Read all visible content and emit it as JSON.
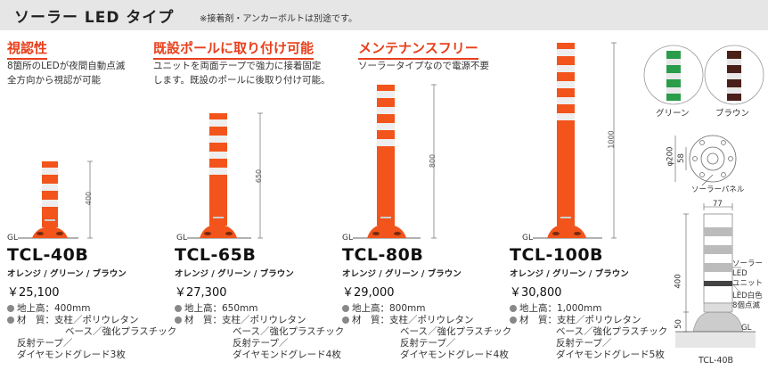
{
  "header": {
    "title": "ソーラー LED タイプ",
    "note": "※接着剤・アンカーボルトは別途です。"
  },
  "features": [
    {
      "title": "視認性",
      "lines": [
        "8箇所のLEDが夜間自動点滅",
        "全方向から視認が可能"
      ]
    },
    {
      "title": "既設ポールに取り付け可能",
      "lines": [
        "ユニットを両面テープで強力に接着固定",
        "します。既設のポールに後取り付け可能。"
      ]
    },
    {
      "title": "メンテナンスフリー",
      "lines": [
        "ソーラータイプなので電源不要"
      ]
    }
  ],
  "products": [
    {
      "name": "TCL-40B",
      "colors": "オレンジ / グリーン / ブラウン",
      "price": "￥25,100",
      "height_label": "400",
      "spec_height": "地上高：400mm",
      "spec_material": "材　質：支柱／ポリウレタン",
      "spec_lines": [
        "ベース／強化プラスチック",
        "反射テープ／",
        "ダイヤモンドグレード3枚"
      ]
    },
    {
      "name": "TCL-65B",
      "colors": "オレンジ / グリーン / ブラウン",
      "price": "￥27,300",
      "height_label": "650",
      "spec_height": "地上高：650mm",
      "spec_material": "材　質：支柱／ポリウレタン",
      "spec_lines": [
        "ベース／強化プラスチック",
        "反射テープ／",
        "ダイヤモンドグレード4枚"
      ]
    },
    {
      "name": "TCL-80B",
      "colors": "オレンジ / グリーン / ブラウン",
      "price": "￥29,000",
      "height_label": "800",
      "spec_height": "地上高：800mm",
      "spec_material": "材　質：支柱／ポリウレタン",
      "spec_lines": [
        "ベース／強化プラスチック",
        "反射テープ／",
        "ダイヤモンドグレード4枚"
      ]
    },
    {
      "name": "TCL-100B",
      "colors": "オレンジ / グリーン / ブラウン",
      "price": "￥30,800",
      "height_label": "1000",
      "spec_height": "地上高：1,000mm",
      "spec_material": "材　質：支柱／ポリウレタン",
      "spec_lines": [
        "ベース／強化プラスチック",
        "反射テープ／",
        "ダイヤモンドグレード5枚"
      ]
    }
  ],
  "gl_label": "GL",
  "swatches": [
    {
      "label": "グリーン",
      "color": "#2a9d4a"
    },
    {
      "label": "ブラウン",
      "color": "#4a1f1a"
    }
  ],
  "diagram": {
    "dia_label": "φ200",
    "r_label": "58",
    "solar_panel": "ソーラーパネル",
    "width_label": "77",
    "height_label": "400",
    "base_label": "50",
    "led_label_lines": [
      "ソーラー",
      "LED",
      "ユニット"
    ],
    "led_note_lines": [
      "LED白色",
      "8個点滅"
    ],
    "gl": "GL",
    "caption": "TCL-40B"
  },
  "colors": {
    "orange": "#f2541b",
    "accent": "#e8401c"
  }
}
